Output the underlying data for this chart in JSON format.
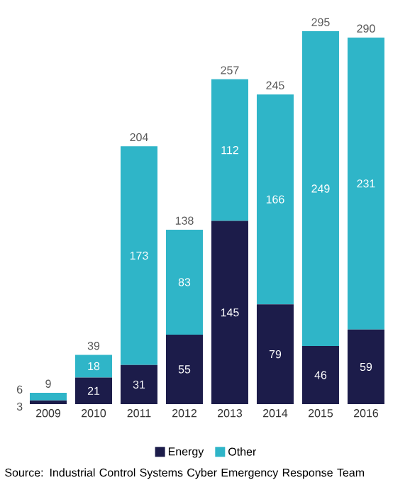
{
  "chart_data": {
    "type": "bar",
    "stacked": true,
    "categories": [
      "2009",
      "2010",
      "2011",
      "2012",
      "2013",
      "2014",
      "2015",
      "2016"
    ],
    "series": [
      {
        "name": "Energy",
        "color": "#1c1c4a",
        "values": [
          3,
          21,
          31,
          55,
          145,
          79,
          46,
          59
        ]
      },
      {
        "name": "Other",
        "color": "#2fb5c8",
        "values": [
          6,
          18,
          173,
          83,
          112,
          166,
          249,
          231
        ]
      }
    ],
    "data_labels": true,
    "totals": [
      "9",
      "39",
      "204",
      "138",
      "257",
      "245",
      "295",
      "290"
    ],
    "legend": "bottom",
    "annotations": [
      "Source: Industrial Control Systems Cyber Emergency Response Team"
    ]
  }
}
